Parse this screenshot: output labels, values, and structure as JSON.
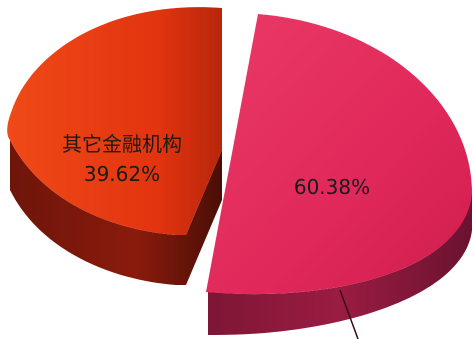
{
  "chart_data": {
    "type": "pie",
    "style": "3d-exploded",
    "title": "",
    "slices": [
      {
        "label": "其它金融机构",
        "value": 39.62,
        "value_label": "39.62%",
        "color": "#e63d12"
      },
      {
        "label": "",
        "value": 60.38,
        "value_label": "60.38%",
        "color": "#e0285a"
      }
    ]
  }
}
